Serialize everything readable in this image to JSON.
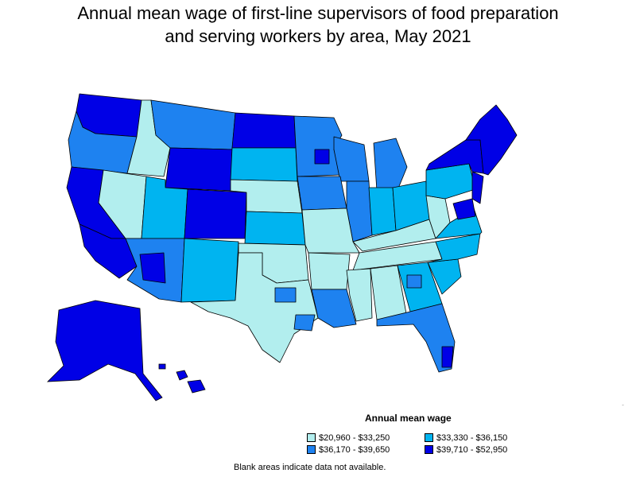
{
  "title": {
    "line1": "Annual mean wage of first-line supervisors of food preparation",
    "line2": "and serving workers by area, May 2021"
  },
  "legend": {
    "title": "Annual mean wage",
    "items": [
      {
        "label": "$20,960 - $33,250",
        "color": "#b2eeee"
      },
      {
        "label": "$33,330 - $36,150",
        "color": "#00b4f0"
      },
      {
        "label": "$36,170 - $39,650",
        "color": "#1e82f0"
      },
      {
        "label": "$39,710 - $52,950",
        "color": "#0000e6"
      }
    ]
  },
  "footnote": "Blank areas indicate data not available.",
  "colors": {
    "boundary": "#000000"
  }
}
